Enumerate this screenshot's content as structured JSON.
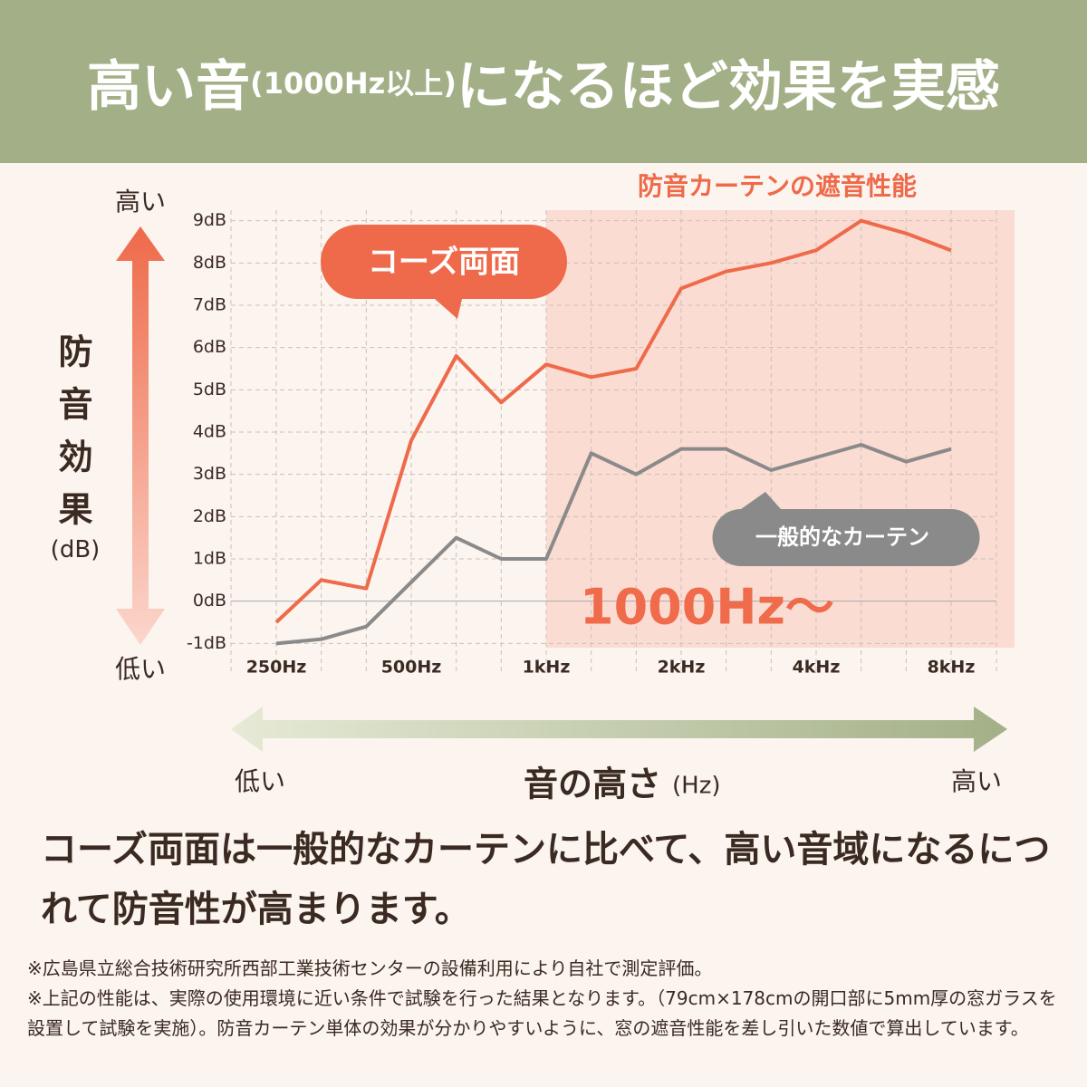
{
  "header": {
    "title_main": "高い音",
    "title_sub": "(1000Hz以上)",
    "title_rest": "になるほど効果を実感"
  },
  "chart_data": {
    "type": "line",
    "y_axis_title": "防音効果",
    "y_axis_unit": "(dB)",
    "y_high": "高い",
    "y_low": "低い",
    "x_axis_title": "音の高さ",
    "x_axis_unit": "(Hz)",
    "x_low": "低い",
    "x_high": "高い",
    "region_label": "防音カーテンの遮音性能",
    "region_marker": "1000Hz〜",
    "region_start": 6,
    "categories": [
      "250Hz",
      null,
      null,
      "500Hz",
      null,
      null,
      "1kHz",
      null,
      null,
      "2kHz",
      null,
      null,
      "4kHz",
      null,
      null,
      "8kHz"
    ],
    "series": [
      {
        "name": "コーズ両面",
        "color": "#ee6a4a",
        "values": [
          -0.5,
          0.5,
          0.3,
          3.8,
          5.8,
          4.7,
          5.6,
          5.3,
          5.5,
          7.4,
          7.8,
          8.0,
          8.3,
          9.0,
          8.7,
          8.3
        ]
      },
      {
        "name": "一般的なカーテン",
        "color": "#8a8a8a",
        "values": [
          -1.0,
          -0.9,
          -0.6,
          0.45,
          1.5,
          1.0,
          1.0,
          3.5,
          3.0,
          3.6,
          3.6,
          3.1,
          3.4,
          3.7,
          3.3,
          3.6
        ]
      }
    ],
    "ylim": [
      -1.1,
      9.25
    ],
    "yticks": [
      {
        "value": -1,
        "label": "-1dB"
      },
      {
        "value": 0,
        "label": "0dB"
      },
      {
        "value": 1,
        "label": "1dB"
      },
      {
        "value": 2,
        "label": "2dB"
      },
      {
        "value": 3,
        "label": "3dB"
      },
      {
        "value": 4,
        "label": "4dB"
      },
      {
        "value": 5,
        "label": "5dB"
      },
      {
        "value": 6,
        "label": "6dB"
      },
      {
        "value": 7,
        "label": "7dB"
      },
      {
        "value": 8,
        "label": "8dB"
      },
      {
        "value": 9,
        "label": "9dB"
      }
    ],
    "grid": true
  },
  "body": "コーズ両面は一般的なカーテンに比べて、高い音域になるにつれて防音性が高まります。",
  "notes": [
    "※広島県立総合技術研究所西部工業技術センターの設備利用により自社で測定評価。",
    "※上記の性能は、実際の使用環境に近い条件で試験を行った結果となります。（79cm×178cmの開口部に5mm厚の窓ガラスを設置して試験を実施）。防音カーテン単体の効果が分かりやすいように、窓の遮音性能を差し引いた数値で算出しています。"
  ]
}
